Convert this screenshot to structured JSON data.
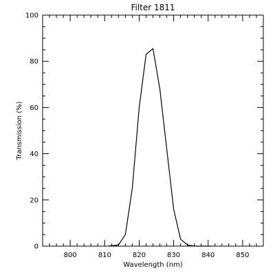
{
  "chart_data": {
    "type": "line",
    "title": "Filter 1811",
    "xlabel": "Wavelength (nm)",
    "ylabel": "Transmission (%)",
    "xlim": [
      792,
      856
    ],
    "ylim": [
      0,
      100
    ],
    "x_ticks": [
      800,
      810,
      820,
      830,
      840,
      850
    ],
    "x_tick_labels": [
      "800",
      "810",
      "820",
      "830",
      "840",
      "850"
    ],
    "x_minor_step": 2,
    "y_ticks": [
      0,
      20,
      40,
      60,
      80,
      100
    ],
    "y_tick_labels": [
      "0",
      "20",
      "40",
      "60",
      "80",
      "100"
    ],
    "y_minor_step": 5,
    "grid": false,
    "legend": "none",
    "line_color": "#000000",
    "series": [
      {
        "x": [
          811,
          814,
          816,
          818,
          820,
          822,
          824,
          826,
          828,
          830,
          832,
          834,
          836,
          838,
          841
        ],
        "y": [
          0,
          0.5,
          5,
          25,
          60,
          83,
          85.5,
          68,
          42,
          16,
          3,
          0.5,
          0,
          0,
          0
        ]
      }
    ]
  }
}
